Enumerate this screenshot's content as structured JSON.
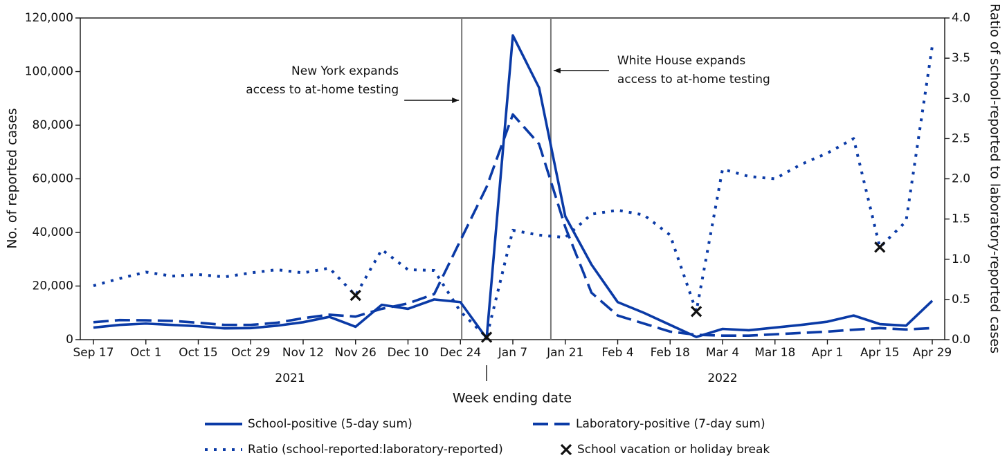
{
  "chart_data": {
    "type": "line",
    "xlabel": "Week ending date",
    "ylabel": "No. of reported cases",
    "y2label": "Ratio of school-reported to laboratory-reported cases",
    "categories": [
      "Sep 17",
      null,
      "Oct 1",
      null,
      "Oct 15",
      null,
      "Oct 29",
      null,
      "Nov 12",
      null,
      "Nov 26",
      null,
      "Dec 10",
      null,
      "Dec 24",
      null,
      "Jan 7",
      null,
      "Jan 21",
      null,
      "Feb 4",
      null,
      "Feb 18",
      null,
      "Mar 4",
      null,
      "Mar 18",
      null,
      "Apr 1",
      null,
      "Apr 15",
      null,
      "Apr 29"
    ],
    "x_groups": [
      {
        "label": "2021",
        "start": 0,
        "end": 15
      },
      {
        "label": "2022",
        "start": 16,
        "end": 32
      }
    ],
    "ylim": [
      0,
      120000
    ],
    "yticks": [
      0,
      {
        "value": 20000,
        "label": "20,000"
      },
      {
        "value": 40000,
        "label": "40,000"
      },
      {
        "value": 60000,
        "label": "60,000"
      },
      {
        "value": 80000,
        "label": "80,000"
      },
      {
        "value": 100000,
        "label": "100,000"
      },
      {
        "value": 120000,
        "label": "120,000"
      }
    ],
    "y2lim": [
      0,
      4
    ],
    "y2ticks": [
      {
        "value": 0,
        "label": "0.0"
      },
      {
        "value": 0.5,
        "label": "0.5"
      },
      {
        "value": 1,
        "label": "1.0"
      },
      {
        "value": 1.5,
        "label": "1.5"
      },
      {
        "value": 2,
        "label": "2.0"
      },
      {
        "value": 2.5,
        "label": "2.5"
      },
      {
        "value": 3,
        "label": "3.0"
      },
      {
        "value": 3.5,
        "label": "3.5"
      },
      {
        "value": 4,
        "label": "4.0"
      }
    ],
    "series": [
      {
        "name": "School-positive (5-day sum)",
        "color": "#0a3aa6",
        "style": "solid",
        "values": [
          4500,
          5500,
          6000,
          5500,
          5000,
          4200,
          4300,
          5200,
          6500,
          8500,
          4800,
          13000,
          11500,
          15000,
          14000,
          500,
          113500,
          94000,
          46000,
          28000,
          14000,
          10000,
          5500,
          1000,
          4000,
          3500,
          4500,
          5500,
          6700,
          9000,
          5800,
          5200,
          14500
        ]
      },
      {
        "name": "Laboratory-positive (7-day sum)",
        "color": "#0a3aa6",
        "style": "dashed",
        "values": [
          6500,
          7300,
          7200,
          7000,
          6300,
          5500,
          5500,
          6300,
          8000,
          9300,
          8600,
          11500,
          13500,
          17000,
          37000,
          57000,
          84000,
          73000,
          42000,
          17500,
          9000,
          6000,
          3000,
          1800,
          1500,
          1500,
          2000,
          2500,
          3000,
          3700,
          4300,
          3800,
          4300
        ]
      },
      {
        "name": "Ratio (school-reported:laboratory-reported)",
        "color": "#0a3aa6",
        "style": "dotted",
        "axis": "y2",
        "values": [
          0.67,
          0.76,
          0.84,
          0.79,
          0.81,
          0.78,
          0.83,
          0.87,
          0.83,
          0.89,
          0.55,
          1.12,
          0.87,
          0.86,
          0.35,
          0.03,
          1.36,
          1.3,
          1.27,
          1.56,
          1.61,
          1.55,
          1.3,
          0.35,
          2.12,
          2.03,
          2,
          2.18,
          2.32,
          2.5,
          1.15,
          1.47,
          3.65
        ]
      },
      {
        "name": "School vacation or holiday break",
        "color": "#111111",
        "style": "marker",
        "axis": "y2",
        "values": [
          null,
          null,
          null,
          null,
          null,
          null,
          null,
          null,
          null,
          null,
          0.55,
          null,
          null,
          null,
          null,
          0.03,
          null,
          null,
          null,
          null,
          null,
          null,
          null,
          0.35,
          null,
          null,
          null,
          null,
          null,
          null,
          1.15,
          null,
          null
        ]
      }
    ],
    "annotations": [
      {
        "text": [
          "New York expands",
          "access to at-home testing"
        ],
        "x": 14.05,
        "side": "left"
      },
      {
        "text": [
          "White House expands",
          "access to at-home testing"
        ],
        "x": 17.45,
        "side": "right"
      }
    ]
  }
}
